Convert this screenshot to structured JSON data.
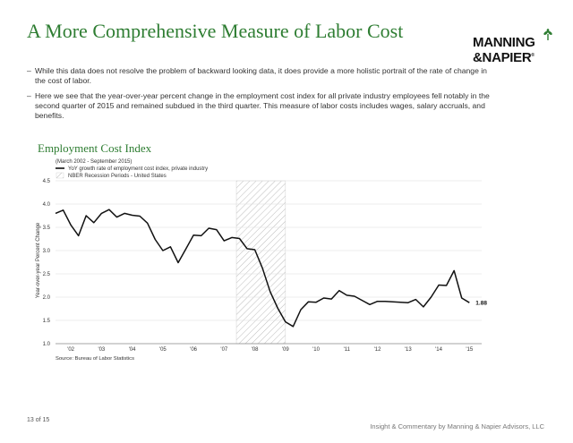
{
  "page": {
    "title": "A More Comprehensive Measure of Labor Cost",
    "logo": {
      "line1": "MANNING",
      "line2": "&NAPIER",
      "tm": "®"
    },
    "bullets": [
      "While this data does not resolve the problem of backward looking data, it does provide a more holistic portrait of the rate of change in the cost of labor.",
      "Here we see that the year-over-year percent change in the employment cost index for all private industry employees fell notably in the second quarter of 2015 and remained subdued in the third quarter. This measure of labor costs includes wages, salary accruals, and benefits."
    ],
    "footer_page": "13 of 15",
    "footer_right": "Insight & Commentary by Manning & Napier Advisors, LLC"
  },
  "colors": {
    "accent_green": "#2e7d32",
    "line": "#111111",
    "recession_hatch": "#bdbdbd"
  },
  "chart_data": {
    "type": "line",
    "title": "Employment Cost Index",
    "subtitle": "(March 2002 - September 2015)",
    "ylabel": "Year-over-year Percent Change",
    "xlabel": "",
    "source": "Source: Bureau of Labor Statistics",
    "ylim": [
      1.0,
      4.5
    ],
    "yticks": [
      "1.0",
      "1.5",
      "2.0",
      "2.5",
      "3.0",
      "3.5",
      "4.0",
      "4.5"
    ],
    "xlim": [
      2002.0,
      2015.9
    ],
    "xticks": [
      {
        "label": "'02",
        "x": 2002.5
      },
      {
        "label": "'03",
        "x": 2003.5
      },
      {
        "label": "'04",
        "x": 2004.5
      },
      {
        "label": "'05",
        "x": 2005.5
      },
      {
        "label": "'06",
        "x": 2006.5
      },
      {
        "label": "'07",
        "x": 2007.5
      },
      {
        "label": "'08",
        "x": 2008.5
      },
      {
        "label": "'09",
        "x": 2009.5
      },
      {
        "label": "'10",
        "x": 2010.5
      },
      {
        "label": "'11",
        "x": 2011.5
      },
      {
        "label": "'12",
        "x": 2012.5
      },
      {
        "label": "'13",
        "x": 2013.5
      },
      {
        "label": "'14",
        "x": 2014.5
      },
      {
        "label": "'15",
        "x": 2015.5
      }
    ],
    "legend": [
      {
        "label": "YoY growth rate of employment cost index, private industry",
        "kind": "line"
      },
      {
        "label": "NBER Recession Periods - United States",
        "kind": "hatch"
      }
    ],
    "legend_position": "top-left",
    "recessions": [
      {
        "start": 2007.9,
        "end": 2009.5
      }
    ],
    "end_label": "1.88",
    "series": [
      {
        "name": "YoY growth rate of employment cost index, private industry",
        "x": [
          2002.0,
          2002.25,
          2002.5,
          2002.75,
          2003.0,
          2003.25,
          2003.5,
          2003.75,
          2004.0,
          2004.25,
          2004.5,
          2004.75,
          2005.0,
          2005.25,
          2005.5,
          2005.75,
          2006.0,
          2006.25,
          2006.5,
          2006.75,
          2007.0,
          2007.25,
          2007.5,
          2007.75,
          2008.0,
          2008.25,
          2008.5,
          2008.75,
          2009.0,
          2009.25,
          2009.5,
          2009.75,
          2010.0,
          2010.25,
          2010.5,
          2010.75,
          2011.0,
          2011.25,
          2011.5,
          2011.75,
          2012.0,
          2012.25,
          2012.5,
          2012.75,
          2013.0,
          2013.25,
          2013.5,
          2013.75,
          2014.0,
          2014.25,
          2014.5,
          2014.75,
          2015.0,
          2015.25,
          2015.5
        ],
        "y": [
          3.8,
          3.87,
          3.55,
          3.32,
          3.75,
          3.6,
          3.8,
          3.88,
          3.72,
          3.8,
          3.76,
          3.74,
          3.59,
          3.24,
          3.0,
          3.08,
          2.74,
          3.03,
          3.33,
          3.32,
          3.48,
          3.45,
          3.21,
          3.28,
          3.26,
          3.04,
          3.02,
          2.62,
          2.12,
          1.76,
          1.47,
          1.37,
          1.73,
          1.9,
          1.89,
          1.98,
          1.96,
          2.14,
          2.04,
          2.02,
          1.93,
          1.84,
          1.91,
          1.91,
          1.9,
          1.89,
          1.88,
          1.95,
          1.79,
          2.0,
          2.26,
          2.25,
          2.57,
          1.98,
          1.88
        ]
      }
    ]
  }
}
